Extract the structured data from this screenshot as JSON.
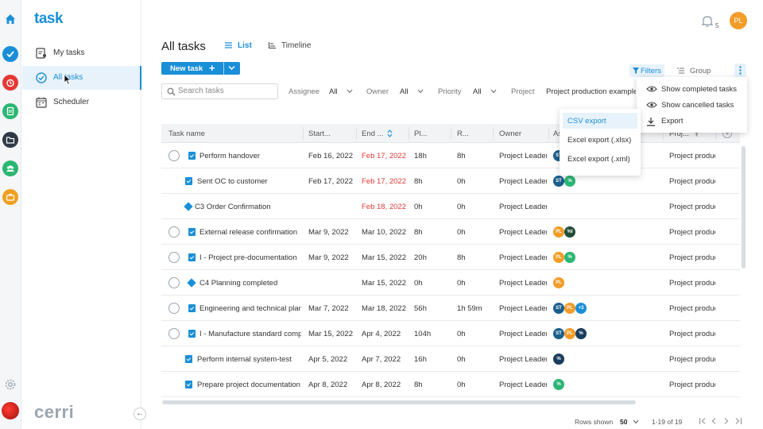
{
  "app": {
    "logo": "task",
    "brand": "cerri"
  },
  "sidebar": {
    "items": [
      {
        "label": "My tasks"
      },
      {
        "label": "All tasks"
      },
      {
        "label": "Scheduler"
      }
    ]
  },
  "header": {
    "title": "All tasks",
    "tabs": [
      {
        "label": "List"
      },
      {
        "label": "Timeline"
      }
    ],
    "notification_count": "5",
    "user_initials": "PL"
  },
  "toolbar": {
    "new_task_label": "New task",
    "filters_label": "Filters",
    "group_label": "Group"
  },
  "filters": {
    "search_placeholder": "Search tasks",
    "assignee": {
      "label": "Assignee",
      "value": "All"
    },
    "owner": {
      "label": "Owner",
      "value": "All"
    },
    "priority": {
      "label": "Priority",
      "value": "All"
    },
    "project": {
      "label": "Project",
      "value": "Project production example"
    }
  },
  "more_menu": {
    "items": [
      {
        "label": "Show completed tasks"
      },
      {
        "label": "Show cancelled tasks"
      },
      {
        "label": "Export"
      }
    ]
  },
  "export_menu": {
    "items": [
      {
        "label": "CSV export"
      },
      {
        "label": "Excel export (.xlsx)"
      },
      {
        "label": "Excel export (.xml)"
      }
    ]
  },
  "table": {
    "columns": [
      "Task name",
      "Start...",
      "End ...",
      "Pl...",
      "R...",
      "Owner",
      "As",
      "Proj..."
    ],
    "rows": [
      {
        "name": "Perform handover",
        "start": "Feb 16, 2022",
        "end": "Feb 17, 2022",
        "planned": "18h",
        "remaining": "8h",
        "owner": "Project Leader",
        "project": "Project production example",
        "avatars": [
          "ST"
        ]
      },
      {
        "name": "Sent OC to customer",
        "start": "Feb 17, 2022",
        "end": "Feb 17, 2022",
        "planned": "8h",
        "remaining": "0h",
        "owner": "Project Leader",
        "project": "Project production example",
        "avatars": [
          "ST",
          "%"
        ]
      },
      {
        "name": "C3 Order Confirmation",
        "start": "",
        "end": "Feb 18, 2022",
        "planned": "0h",
        "remaining": "0h",
        "owner": "Project Leader",
        "project": "Project production example",
        "avatars": []
      },
      {
        "name": "External release confirmation",
        "start": "Mar 9, 2022",
        "end": "Mar 10, 2022",
        "planned": "8h",
        "remaining": "0h",
        "owner": "Project Leader",
        "project": "Project production example",
        "avatars": [
          "PL",
          "%I"
        ]
      },
      {
        "name": "I - Project pre-documentation",
        "start": "Mar 9, 2022",
        "end": "Mar 15, 2022",
        "planned": "20h",
        "remaining": "8h",
        "owner": "Project Leader",
        "project": "Project production example",
        "avatars": [
          "PL",
          "%"
        ]
      },
      {
        "name": "C4 Planning completed",
        "start": "",
        "end": "Mar 15, 2022",
        "planned": "0h",
        "remaining": "0h",
        "owner": "Project Leader",
        "project": "Project production example",
        "avatars": [
          "PL"
        ]
      },
      {
        "name": "Engineering and technical planning",
        "start": "Mar 7, 2022",
        "end": "Mar 18, 2022",
        "planned": "56h",
        "remaining": "1h 59m",
        "owner": "Project Leader",
        "project": "Project production example",
        "avatars": [
          "ST",
          "PL",
          "+3"
        ]
      },
      {
        "name": "I - Manufacture standard components",
        "start": "Mar 15, 2022",
        "end": "Apr 4, 2022",
        "planned": "104h",
        "remaining": "0h",
        "owner": "Project Leader",
        "project": "Project production example",
        "avatars": [
          "ST",
          "PL",
          "%"
        ]
      },
      {
        "name": "Perform internal system-test",
        "start": "Apr 5, 2022",
        "end": "Apr 7, 2022",
        "planned": "16h",
        "remaining": "0h",
        "owner": "Project Leader",
        "project": "Project production example",
        "avatars": [
          "%"
        ]
      },
      {
        "name": "Prepare project documentation",
        "start": "Apr 8, 2022",
        "end": "Apr 8, 2022",
        "planned": "8h",
        "remaining": "0h",
        "owner": "Project Leader",
        "project": "Project production example",
        "avatars": [
          "%"
        ]
      }
    ]
  },
  "pagination": {
    "rows_label": "Rows shown",
    "rows_value": "50",
    "range": "1-19 of 19"
  },
  "colors": {
    "accent": "#1a8fd8",
    "overdue": "#e53935",
    "orange": "#f39c28",
    "green": "#2bb673"
  }
}
